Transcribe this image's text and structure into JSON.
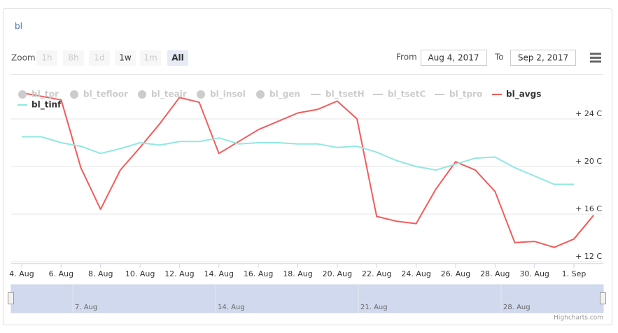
{
  "header": {
    "title": "bl"
  },
  "toolbar": {
    "zoom_label": "Zoom",
    "buttons": [
      {
        "label": "1h",
        "state": "disabled"
      },
      {
        "label": "8h",
        "state": "disabled"
      },
      {
        "label": "1d",
        "state": "disabled"
      },
      {
        "label": "1w",
        "state": "normal"
      },
      {
        "label": "1m",
        "state": "disabled"
      },
      {
        "label": "All",
        "state": "selected"
      }
    ],
    "from_label": "From",
    "from_value": "Aug 4, 2017",
    "to_label": "To",
    "to_value": "Sep 2, 2017"
  },
  "navigator": {
    "labels": [
      "7. Aug",
      "14. Aug",
      "21. Aug",
      "28. Aug"
    ]
  },
  "credits": "Highcharts.com",
  "chart_data": {
    "type": "line",
    "x": [
      "4. Aug",
      null,
      "6. Aug",
      null,
      "8. Aug",
      null,
      "10. Aug",
      null,
      "12. Aug",
      null,
      "14. Aug",
      null,
      "16. Aug",
      null,
      "18. Aug",
      null,
      "20. Aug",
      null,
      "22. Aug",
      null,
      "24. Aug",
      null,
      "26. Aug",
      null,
      "28. Aug",
      null,
      "30. Aug",
      null,
      "1. Sep",
      null
    ],
    "hidden_series": [
      {
        "name": "bl_tpr",
        "symbol": "circle"
      },
      {
        "name": "bl_tefloor",
        "symbol": "circle"
      },
      {
        "name": "bl_teair",
        "symbol": "circle"
      },
      {
        "name": "bl_insol",
        "symbol": "circle"
      },
      {
        "name": "bl_gen",
        "symbol": "circle"
      },
      {
        "name": "bl_tsetH",
        "symbol": "line"
      },
      {
        "name": "bl_tsetC",
        "symbol": "line"
      },
      {
        "name": "bl_tpro",
        "symbol": "line"
      }
    ],
    "series": [
      {
        "name": "bl_avgs",
        "color": "#f45b5b",
        "values": [
          26.2,
          25.9,
          25.6,
          19.9,
          16.4,
          19.7,
          21.6,
          23.6,
          25.8,
          25.4,
          21.1,
          22.1,
          23.1,
          23.8,
          24.5,
          24.8,
          25.5,
          24.0,
          15.8,
          15.4,
          15.2,
          18.1,
          20.4,
          19.7,
          17.9,
          13.6,
          13.7,
          13.2,
          13.9,
          15.9
        ]
      },
      {
        "name": "bl_tinf",
        "color": "#91e8e1",
        "values": [
          22.5,
          22.5,
          22.0,
          21.7,
          21.1,
          21.5,
          22.0,
          21.8,
          22.1,
          22.1,
          22.4,
          21.9,
          22.0,
          22.0,
          21.9,
          21.9,
          21.6,
          21.7,
          21.2,
          20.5,
          20.0,
          19.7,
          20.2,
          20.7,
          20.8,
          19.9,
          19.2,
          18.5,
          18.5,
          null
        ]
      }
    ],
    "ylim": [
      11.6,
      26.6
    ],
    "yticks": [
      {
        "value": 12,
        "label": "+ 12 C"
      },
      {
        "value": 16,
        "label": "+ 16 C"
      },
      {
        "value": 20,
        "label": "+ 20 C"
      },
      {
        "value": 24,
        "label": "+ 24 C"
      }
    ],
    "grid": true
  }
}
